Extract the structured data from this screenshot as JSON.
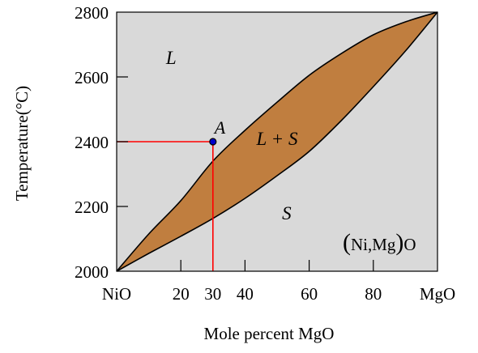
{
  "chart_data": {
    "type": "phase-diagram",
    "title": "",
    "xlabel": "Mole percent MgO",
    "ylabel": "Temperature(°C)",
    "xlim": [
      0,
      100
    ],
    "ylim": [
      2000,
      2800
    ],
    "x_ticks": [
      {
        "value": 0,
        "label": "NiO"
      },
      {
        "value": 20,
        "label": "20"
      },
      {
        "value": 30,
        "label": "30"
      },
      {
        "value": 40,
        "label": "40"
      },
      {
        "value": 60,
        "label": "60"
      },
      {
        "value": 80,
        "label": "80"
      },
      {
        "value": 100,
        "label": "MgO"
      }
    ],
    "y_ticks": [
      {
        "value": 2000,
        "label": "2000"
      },
      {
        "value": 2200,
        "label": "2200"
      },
      {
        "value": 2400,
        "label": "2400"
      },
      {
        "value": 2600,
        "label": "2600"
      },
      {
        "value": 2800,
        "label": "2800"
      }
    ],
    "liquidus": [
      [
        0,
        2000
      ],
      [
        10,
        2115
      ],
      [
        20,
        2218
      ],
      [
        30,
        2340
      ],
      [
        40,
        2435
      ],
      [
        50,
        2522
      ],
      [
        60,
        2605
      ],
      [
        70,
        2672
      ],
      [
        80,
        2730
      ],
      [
        90,
        2770
      ],
      [
        100,
        2800
      ]
    ],
    "solidus": [
      [
        0,
        2000
      ],
      [
        10,
        2055
      ],
      [
        20,
        2108
      ],
      [
        30,
        2163
      ],
      [
        40,
        2225
      ],
      [
        50,
        2295
      ],
      [
        60,
        2370
      ],
      [
        70,
        2465
      ],
      [
        80,
        2570
      ],
      [
        90,
        2680
      ],
      [
        100,
        2800
      ]
    ],
    "point": {
      "label": "A",
      "x": 30,
      "y": 2400
    },
    "guide_lines": {
      "horizontal_y": 2400,
      "vertical_x": 30
    },
    "regions": [
      {
        "label": "L",
        "x": 17,
        "y": 2640
      },
      {
        "label": "L + S",
        "x": 50,
        "y": 2390
      },
      {
        "label": "S",
        "x": 53,
        "y": 2160
      }
    ],
    "phase_label": {
      "text": "(Ni,Mg)O",
      "x": 76,
      "y": 2080
    },
    "colors": {
      "plot_background": "#d9d9d9",
      "two_phase_fill": "#c07e3f",
      "curve": "#000000",
      "guide_line": "#ff0000",
      "point_fill": "#0000cc"
    }
  }
}
